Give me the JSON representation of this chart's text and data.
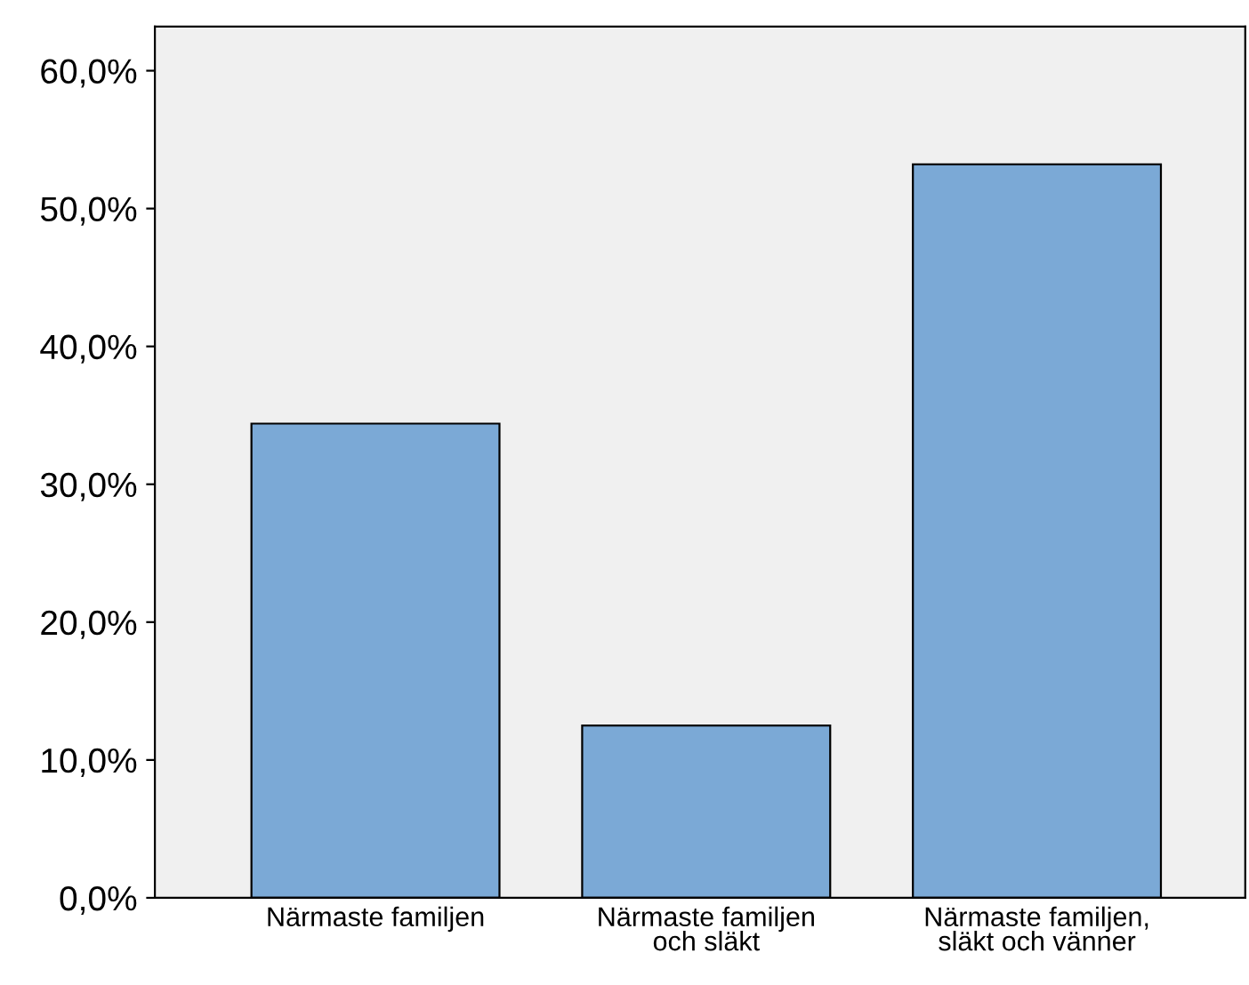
{
  "chart_data": {
    "type": "bar",
    "categories": [
      "Närmaste familjen",
      "Närmaste familjen\noch släkt",
      "Närmaste familjen,\nsläkt och vänner"
    ],
    "values": [
      34.4,
      12.5,
      53.2
    ],
    "color": "#7ba9d6",
    "ylim": [
      0,
      63.2
    ],
    "yticks": [
      {
        "value": 0,
        "label": "0,0%"
      },
      {
        "value": 10,
        "label": "10,0%"
      },
      {
        "value": 20,
        "label": "20,0%"
      },
      {
        "value": 30,
        "label": "30,0%"
      },
      {
        "value": 40,
        "label": "40,0%"
      },
      {
        "value": 50,
        "label": "50,0%"
      },
      {
        "value": 60,
        "label": "60,0%"
      }
    ],
    "grid": false,
    "legend": false
  }
}
